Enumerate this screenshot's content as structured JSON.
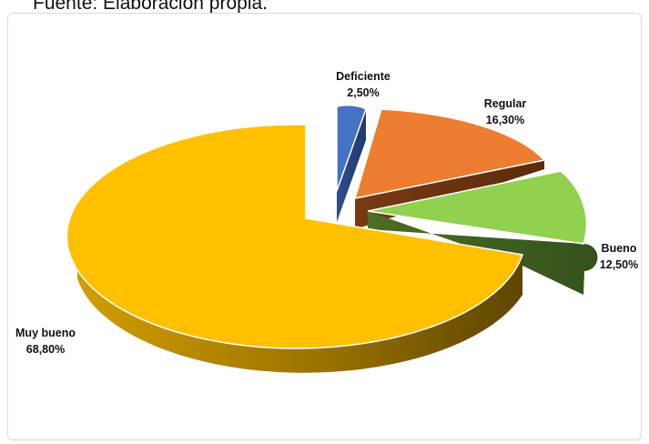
{
  "caption": "Fuente: Elaboración propia.",
  "colors": {
    "deficiente": "#4472c4",
    "regular": "#ed7d31",
    "bueno": "#92d050",
    "muy_bueno": "#ffc000"
  },
  "chart_data": {
    "type": "pie",
    "style": "3d-exploded",
    "title": "",
    "categories": [
      "Deficiente",
      "Regular",
      "Bueno",
      "Muy bueno"
    ],
    "values": [
      2.5,
      16.3,
      12.5,
      68.8
    ],
    "labels": {
      "deficiente": {
        "name": "Deficiente",
        "value": "2,50%"
      },
      "regular": {
        "name": "Regular",
        "value": "16,30%"
      },
      "bueno": {
        "name": "Bueno",
        "value": "12,50%"
      },
      "muy_bueno": {
        "name": "Muy bueno",
        "value": "68,80%"
      }
    }
  }
}
